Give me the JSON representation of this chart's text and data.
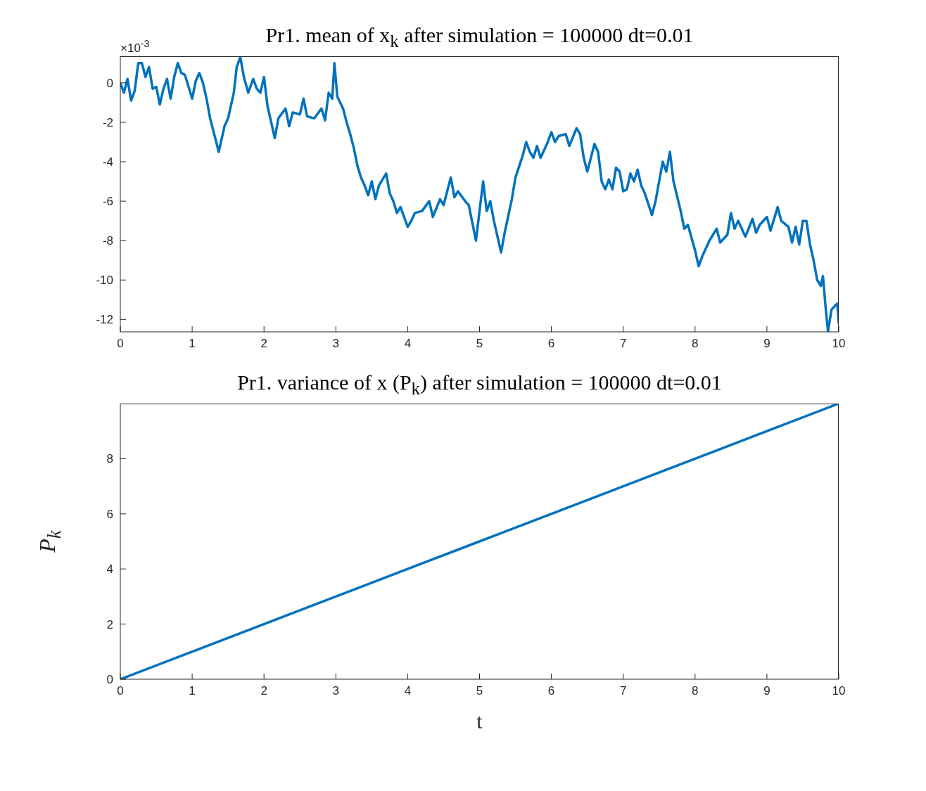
{
  "chart_data": [
    {
      "type": "line",
      "title": "Pr1. mean of x$_{k}$ after simulation = 100000 dt=0.01",
      "annotations": [
        "×10$^{-3}$"
      ],
      "x": [
        0,
        0.05,
        0.1,
        0.15,
        0.2,
        0.25,
        0.3,
        0.35,
        0.4,
        0.45,
        0.5,
        0.55,
        0.6,
        0.65,
        0.7,
        0.75,
        0.8,
        0.85,
        0.9,
        0.95,
        1.0,
        1.05,
        1.1,
        1.15,
        1.2,
        1.25,
        1.3,
        1.37,
        1.45,
        1.5,
        1.58,
        1.62,
        1.67,
        1.72,
        1.78,
        1.85,
        1.9,
        1.95,
        2.0,
        2.05,
        2.1,
        2.15,
        2.2,
        2.3,
        2.35,
        2.4,
        2.5,
        2.55,
        2.6,
        2.7,
        2.8,
        2.85,
        2.9,
        2.95,
        2.98,
        3.02,
        3.1,
        3.15,
        3.2,
        3.25,
        3.3,
        3.35,
        3.4,
        3.45,
        3.5,
        3.55,
        3.6,
        3.7,
        3.75,
        3.8,
        3.85,
        3.9,
        4.0,
        4.05,
        4.1,
        4.2,
        4.3,
        4.35,
        4.45,
        4.5,
        4.55,
        4.6,
        4.65,
        4.7,
        4.8,
        4.85,
        4.95,
        5.05,
        5.1,
        5.15,
        5.2,
        5.3,
        5.35,
        5.45,
        5.5,
        5.6,
        5.65,
        5.7,
        5.75,
        5.8,
        5.85,
        5.9,
        5.95,
        6.0,
        6.05,
        6.1,
        6.2,
        6.25,
        6.35,
        6.4,
        6.45,
        6.5,
        6.55,
        6.6,
        6.65,
        6.7,
        6.75,
        6.8,
        6.85,
        6.9,
        6.95,
        7.0,
        7.05,
        7.1,
        7.15,
        7.2,
        7.25,
        7.3,
        7.4,
        7.45,
        7.5,
        7.55,
        7.6,
        7.65,
        7.7,
        7.8,
        7.85,
        7.9,
        8.0,
        8.05,
        8.1,
        8.2,
        8.3,
        8.35,
        8.45,
        8.5,
        8.55,
        8.6,
        8.7,
        8.8,
        8.85,
        8.9,
        9.0,
        9.05,
        9.15,
        9.2,
        9.3,
        9.35,
        9.4,
        9.45,
        9.5,
        9.55,
        9.6,
        9.65,
        9.7,
        9.75,
        9.78,
        9.82,
        9.85,
        9.9,
        9.95,
        9.98,
        10.0
      ],
      "series": [
        {
          "color": "#0072bd",
          "values": [
            0,
            -0.5,
            0.2,
            -0.9,
            -0.4,
            1.0,
            1.0,
            0.3,
            0.8,
            -0.3,
            -0.2,
            -1.1,
            -0.3,
            0.2,
            -0.8,
            0.3,
            1.0,
            0.5,
            0.4,
            -0.2,
            -0.8,
            0.1,
            0.5,
            0.0,
            -0.8,
            -1.8,
            -2.5,
            -3.5,
            -2.2,
            -1.8,
            -0.5,
            0.8,
            1.3,
            0.3,
            -0.5,
            0.2,
            -0.3,
            -0.5,
            0.3,
            -1.2,
            -2.0,
            -2.8,
            -1.8,
            -1.3,
            -2.2,
            -1.5,
            -1.6,
            -0.8,
            -1.7,
            -1.8,
            -1.3,
            -1.9,
            -0.5,
            -0.8,
            1.0,
            -0.7,
            -1.3,
            -2.0,
            -2.6,
            -3.3,
            -4.2,
            -4.8,
            -5.2,
            -5.7,
            -5.0,
            -5.9,
            -5.2,
            -4.6,
            -5.6,
            -6.0,
            -6.6,
            -6.3,
            -7.3,
            -7.0,
            -6.6,
            -6.5,
            -6.0,
            -6.8,
            -5.9,
            -6.2,
            -5.5,
            -4.8,
            -5.8,
            -5.5,
            -6.0,
            -6.2,
            -8.0,
            -5.0,
            -6.5,
            -6.0,
            -7.0,
            -8.6,
            -7.6,
            -5.9,
            -4.8,
            -3.7,
            -3.0,
            -3.5,
            -3.8,
            -3.2,
            -3.8,
            -3.4,
            -3.0,
            -2.5,
            -3.0,
            -2.7,
            -2.6,
            -3.2,
            -2.3,
            -2.6,
            -3.8,
            -4.5,
            -3.8,
            -3.1,
            -3.5,
            -5.0,
            -5.4,
            -4.9,
            -5.4,
            -4.3,
            -4.5,
            -5.5,
            -5.4,
            -4.6,
            -5.0,
            -4.4,
            -5.2,
            -5.6,
            -6.7,
            -6.0,
            -5.0,
            -4.0,
            -4.5,
            -3.5,
            -5.0,
            -6.5,
            -7.4,
            -7.2,
            -8.5,
            -9.3,
            -8.8,
            -8.0,
            -7.4,
            -8.1,
            -7.7,
            -6.6,
            -7.4,
            -7.0,
            -7.8,
            -6.9,
            -7.6,
            -7.2,
            -6.8,
            -7.5,
            -6.3,
            -7.0,
            -7.3,
            -8.1,
            -7.3,
            -8.2,
            -7.0,
            -7.0,
            -8.2,
            -9.0,
            -10.0,
            -10.3,
            -9.8,
            -11.5,
            -12.6,
            -11.5,
            -11.3,
            -11.2,
            -12.2
          ]
        }
      ],
      "xlim": [
        0,
        10
      ],
      "xticks": [
        0,
        1,
        2,
        3,
        4,
        5,
        6,
        7,
        8,
        9,
        10
      ],
      "ylim": [
        -12.63,
        1.35
      ],
      "yticks": [
        -12,
        -10,
        -8,
        -6,
        -4,
        -2,
        0
      ]
    },
    {
      "type": "line",
      "title": "Pr1. variance of x (P$_{k}$) after simulation = 100000 dt=0.01",
      "xlabel": "t",
      "ylabel": "P$_{k}$",
      "x": [
        0,
        1,
        2,
        3,
        4,
        5,
        6,
        7,
        8,
        9,
        10
      ],
      "series": [
        {
          "color": "#0072bd",
          "values": [
            0,
            1,
            2,
            3,
            4,
            5,
            6,
            7,
            8,
            9,
            10
          ]
        }
      ],
      "xlim": [
        0,
        10
      ],
      "xticks": [
        0,
        1,
        2,
        3,
        4,
        5,
        6,
        7,
        8,
        9,
        10
      ],
      "ylim": [
        0,
        10
      ],
      "yticks": [
        0,
        2,
        4,
        6,
        8
      ]
    }
  ]
}
